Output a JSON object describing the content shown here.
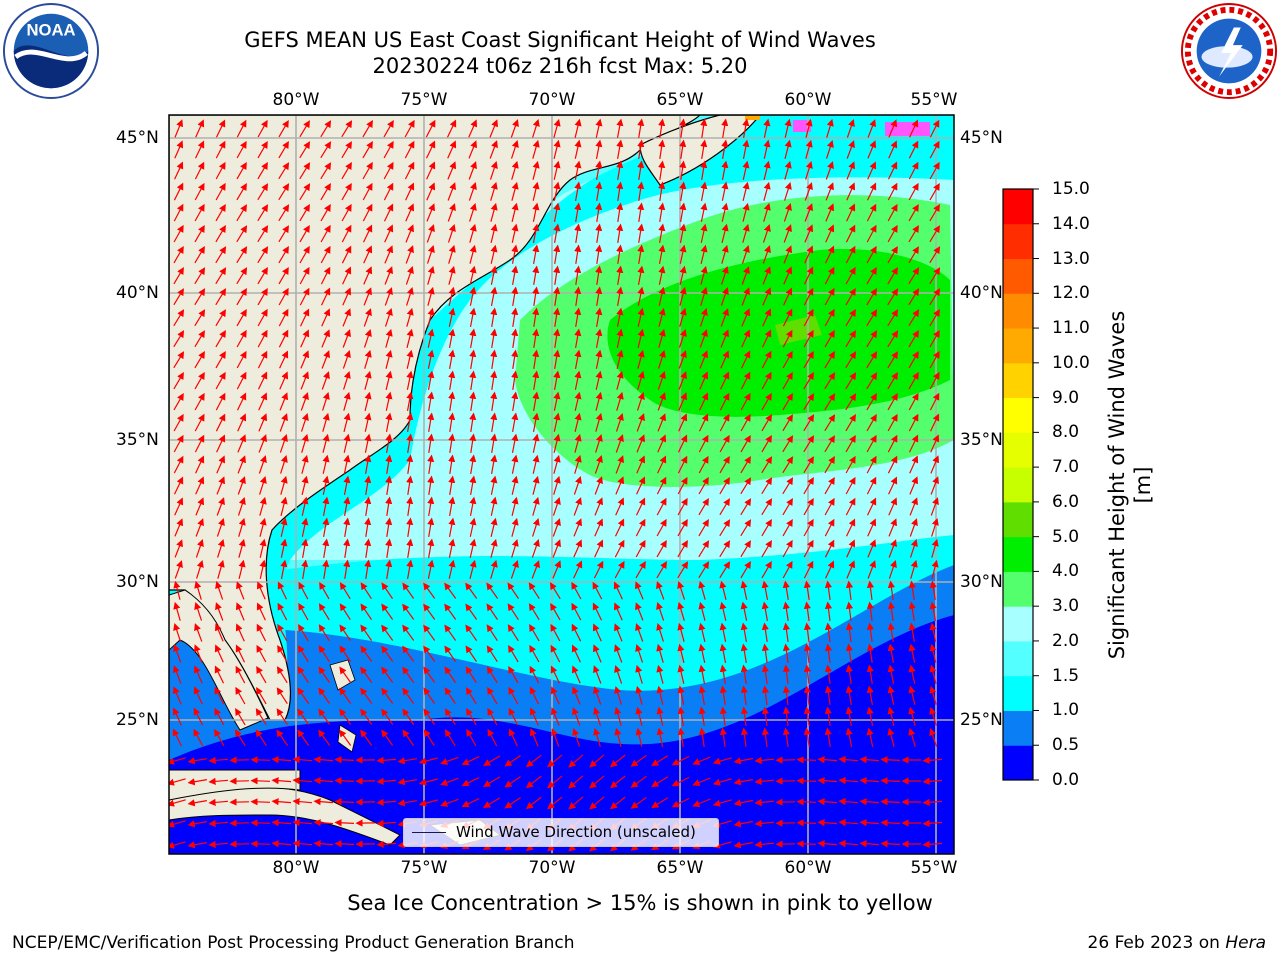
{
  "title": {
    "line1": "GEFS MEAN US East Coast Significant Height of Wind Waves",
    "line2": "20230224 t06z 216h fcst   Max: 5.20"
  },
  "logos": {
    "left": "noaa-logo",
    "right": "national-weather-service-logo"
  },
  "map": {
    "lon_ticks": [
      "80°W",
      "75°W",
      "70°W",
      "65°W",
      "60°W",
      "55°W"
    ],
    "lat_ticks": [
      "45°N",
      "40°N",
      "35°N",
      "30°N",
      "25°N"
    ],
    "land_color": "#eeecdc",
    "arrow_color": "#ff0000",
    "legend_label": "Wind Wave Direction (unscaled)",
    "sea_ice_present": true
  },
  "colorbar": {
    "title": "Significant Height of Wind Waves [m]",
    "tick_labels": [
      "0.0",
      "0.5",
      "1.0",
      "1.5",
      "2.0",
      "3.0",
      "4.0",
      "5.0",
      "6.0",
      "7.0",
      "8.0",
      "9.0",
      "10.0",
      "11.0",
      "12.0",
      "13.0",
      "14.0",
      "15.0"
    ],
    "colors": [
      "#0000ff",
      "#0a7ff5",
      "#00ffff",
      "#54ffff",
      "#a8ffff",
      "#54ff6e",
      "#00ee00",
      "#5fde00",
      "#c8ff00",
      "#e6ff00",
      "#ffff00",
      "#ffd200",
      "#ffaa00",
      "#ff8c00",
      "#ff5a00",
      "#ff2d00",
      "#ff0000"
    ]
  },
  "footer": {
    "ice_note": "Sea Ice Concentration > 15% is shown in pink to yellow",
    "credit": "NCEP/EMC/Verification Post Processing Product Generation Branch",
    "date": "26 Feb 2023 on",
    "machine": "Hera"
  }
}
